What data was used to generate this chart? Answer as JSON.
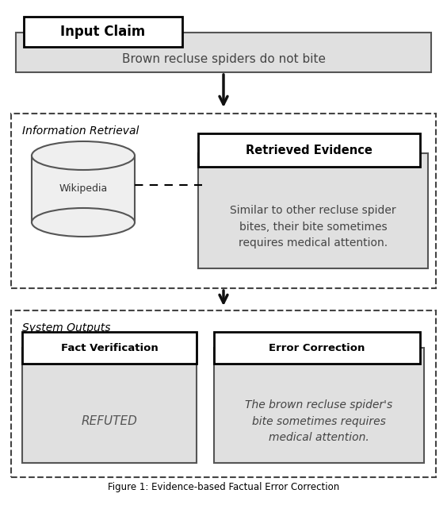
{
  "title": "Figure 1: Evidence-based Factual Error Correction",
  "input_claim_label": "Input Claim",
  "input_claim_text": "Brown recluse spiders do not bite",
  "info_retrieval_label": "Information Retrieval",
  "wikipedia_label": "Wikipedia",
  "retrieved_evidence_label": "Retrieved Evidence",
  "retrieved_evidence_text": "Similar to other recluse spider\nbites, their bite sometimes\nrequires medical attention.",
  "system_outputs_label": "System Outputs",
  "fact_verification_label": "Fact Verification",
  "refuted_label": "REFUTED",
  "error_correction_label": "Error Correction",
  "error_correction_text": "The brown recluse spider's\nbite sometimes requires\nmedical attention.",
  "bg_color": "#ffffff",
  "box_fill_light": "#e0e0e0",
  "box_fill_white": "#ffffff",
  "arrow_color": "#111111"
}
